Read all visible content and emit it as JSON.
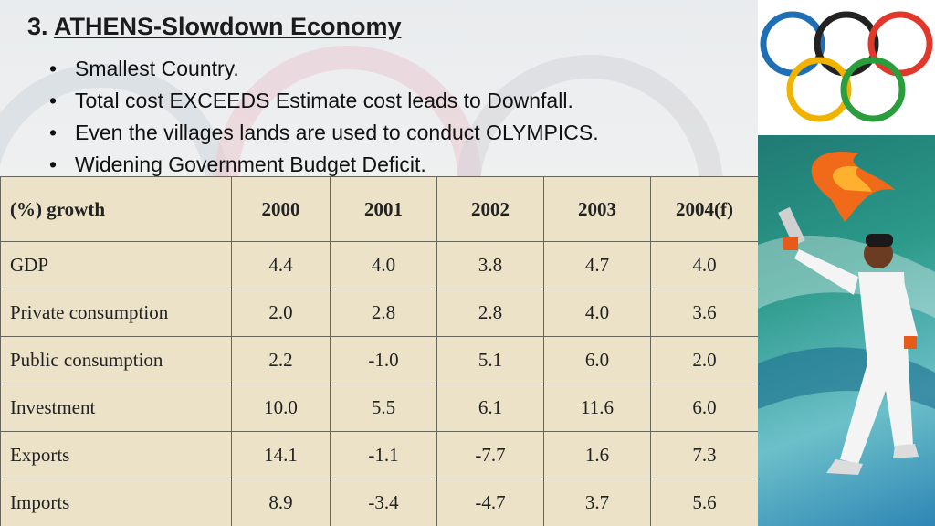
{
  "slide": {
    "title_number": "3.",
    "title_text": "ATHENS-Slowdown Economy",
    "bullets": [
      "Smallest Country.",
      "Total cost EXCEEDS Estimate cost  leads to Downfall.",
      "Even the villages lands are used to conduct OLYMPICS.",
      "Widening Government Budget Deficit."
    ]
  },
  "table": {
    "headers": [
      "(%) growth",
      "2000",
      "2001",
      "2002",
      "2003",
      "2004(f)"
    ],
    "rows": [
      [
        "GDP",
        "4.4",
        "4.0",
        "3.8",
        "4.7",
        "4.0"
      ],
      [
        "Private consumption",
        "2.0",
        "2.8",
        "2.8",
        "4.0",
        "3.6"
      ],
      [
        "Public consumption",
        "2.2",
        "-1.0",
        "5.1",
        "6.0",
        "2.0"
      ],
      [
        "Investment",
        "10.0",
        "5.5",
        "6.1",
        "11.6",
        "6.0"
      ],
      [
        "Exports",
        "14.1",
        "-1.1",
        "-7.7",
        "1.6",
        "7.3"
      ],
      [
        "Imports",
        "8.9",
        "-3.4",
        "-4.7",
        "3.7",
        "5.6"
      ]
    ]
  },
  "olympic_rings_colors": [
    "#1f6fb5",
    "#222222",
    "#e2382b",
    "#f0b400",
    "#2a9d3c"
  ],
  "icons": [
    "olympic-rings-logo",
    "torch-bearer-illustration"
  ]
}
